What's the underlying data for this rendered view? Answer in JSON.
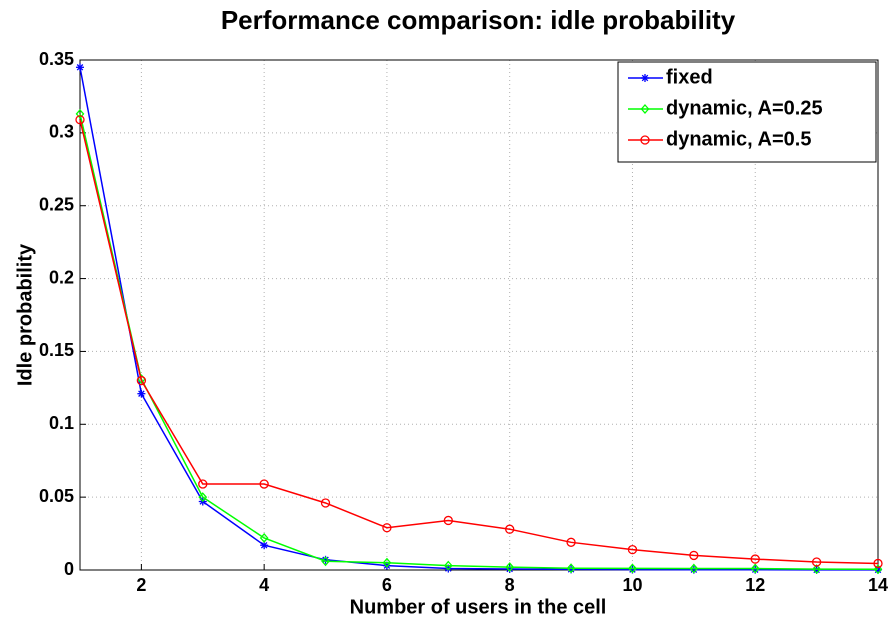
{
  "chart_data": {
    "type": "line",
    "title": "Performance comparison: idle probability",
    "xlabel": "Number of users in the cell",
    "ylabel": "Idle probability",
    "x": [
      1,
      2,
      3,
      4,
      5,
      6,
      7,
      8,
      9,
      10,
      11,
      12,
      13,
      14
    ],
    "series": [
      {
        "name": "fixed",
        "color": "#0000ff",
        "marker": "star",
        "values": [
          0.345,
          0.121,
          0.047,
          0.017,
          0.007,
          0.003,
          0.001,
          0.0007,
          0.0004,
          0.0003,
          0.0002,
          0.0002,
          0.0001,
          0.0001
        ]
      },
      {
        "name": "dynamic, A=0.25",
        "color": "#00ff00",
        "marker": "diamond",
        "values": [
          0.313,
          0.131,
          0.05,
          0.022,
          0.006,
          0.005,
          0.003,
          0.002,
          0.0012,
          0.0011,
          0.001,
          0.001,
          0.0006,
          0.0005
        ]
      },
      {
        "name": "dynamic, A=0.5",
        "color": "#ff0000",
        "marker": "circle",
        "values": [
          0.309,
          0.13,
          0.059,
          0.059,
          0.046,
          0.029,
          0.034,
          0.028,
          0.019,
          0.014,
          0.01,
          0.0075,
          0.0055,
          0.0045
        ]
      }
    ],
    "xlim": [
      1,
      14
    ],
    "xticks": [
      2,
      4,
      6,
      8,
      10,
      12,
      14
    ],
    "ylim": [
      0,
      0.35
    ],
    "yticks": [
      0,
      0.05,
      0.1,
      0.15,
      0.2,
      0.25,
      0.3,
      0.35
    ],
    "grid": true,
    "legend": "northeast"
  }
}
